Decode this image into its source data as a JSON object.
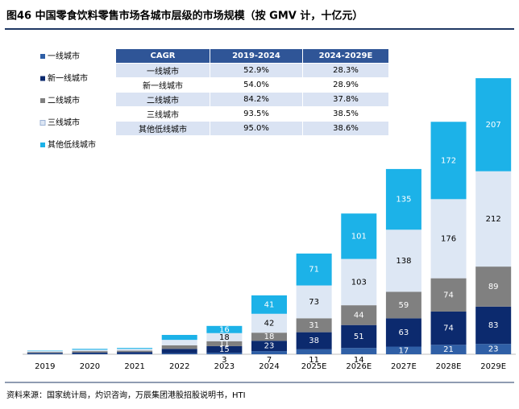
{
  "chart_data": {
    "type": "stacked_bar",
    "title": "图46 中国零食饮料零售市场各城市层级的市场规模（按 GMV 计，十亿元）",
    "source": "资料来源：国家统计局，灼识咨询，万辰集团港股招股说明书，HTI",
    "categories": [
      "2019",
      "2020",
      "2021",
      "2022",
      "2023",
      "2024",
      "2025E",
      "2026E",
      "2027E",
      "2028E",
      "2029E"
    ],
    "data_labels_from": "2023",
    "ylim": [
      0,
      650
    ],
    "series": [
      {
        "name": "一线城市",
        "color": "#2f5fa6",
        "label_color": "#ffffff",
        "values": [
          1,
          1,
          1,
          2,
          3,
          7,
          11,
          14,
          17,
          21,
          23
        ]
      },
      {
        "name": "新一线城市",
        "color": "#0c2a6e",
        "label_color": "#ffffff",
        "values": [
          2,
          3,
          4,
          10,
          15,
          23,
          38,
          51,
          63,
          74,
          83
        ]
      },
      {
        "name": "二线城市",
        "color": "#808080",
        "label_color": "#ffffff",
        "values": [
          2,
          3,
          3,
          8,
          11,
          18,
          31,
          44,
          59,
          74,
          89
        ]
      },
      {
        "name": "三线城市",
        "color": "#dde7f4",
        "label_color": "#000000",
        "values": [
          2,
          3,
          4,
          12,
          18,
          42,
          73,
          103,
          138,
          176,
          212
        ]
      },
      {
        "name": "其他低线城市",
        "color": "#1cb2e8",
        "label_color": "#ffffff",
        "values": [
          1,
          2,
          2,
          11,
          16,
          41,
          71,
          101,
          135,
          172,
          207
        ]
      }
    ],
    "table": {
      "header": [
        "CAGR",
        "2019-2024",
        "2024-2029E"
      ],
      "rows": [
        [
          "一线城市",
          "52.9%",
          "28.3%"
        ],
        [
          "新一线城市",
          "54.0%",
          "28.9%"
        ],
        [
          "二线城市",
          "84.2%",
          "37.8%"
        ],
        [
          "三线城市",
          "93.5%",
          "38.5%"
        ],
        [
          "其他低线城市",
          "95.0%",
          "38.6%"
        ]
      ]
    }
  }
}
